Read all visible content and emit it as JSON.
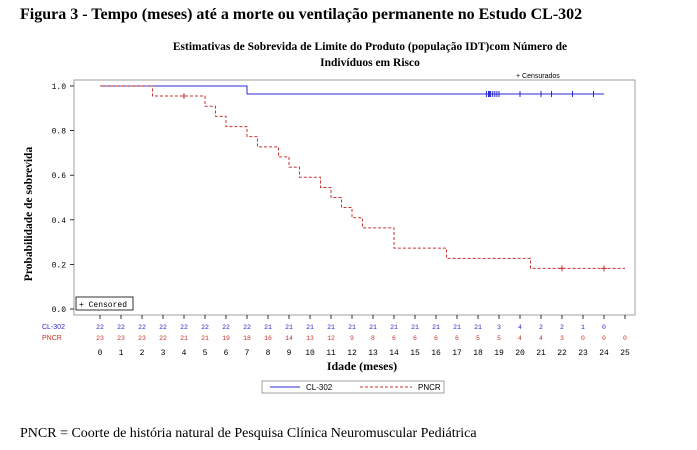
{
  "figure": {
    "title": "Figura 3 - Tempo (meses) até a morte ou ventilação permanente no Estudo CL-302",
    "footnote": "PNCR = Coorte de história natural de Pesquisa Clínica Neuromuscular Pediátrica"
  },
  "colors": {
    "cl302": "#2a2ad0",
    "pncr": "#c83232",
    "axis": "#000000",
    "plot_border": "#888888"
  },
  "chart_data": {
    "type": "line",
    "subtype": "kaplan-meier step survival curve",
    "title_line1": "Estimativas de Sobrevida de Limite do Produto (população IDT)com Número de",
    "title_line2": "Indivíduos em Risco",
    "xlabel": "Idade (meses)",
    "ylabel": "Probabilidade de sobrevida",
    "xlim": [
      0,
      25
    ],
    "ylim": [
      0,
      1
    ],
    "x_ticks": [
      0,
      1,
      2,
      3,
      4,
      5,
      6,
      7,
      8,
      9,
      10,
      11,
      12,
      13,
      14,
      15,
      16,
      17,
      18,
      19,
      20,
      21,
      22,
      23,
      24,
      25
    ],
    "y_ticks": [
      "0.0",
      "0.2",
      "0.4",
      "0.6",
      "0.8",
      "1.0"
    ],
    "y_tick_values": [
      0,
      0.2,
      0.4,
      0.6,
      0.8,
      1.0
    ],
    "censor_legend_top": "+ Censurados",
    "censor_legend_box": "+ Censored",
    "series": [
      {
        "name": "CL-302",
        "key": "cl302",
        "steps": [
          [
            0,
            1.0
          ],
          [
            7,
            0.964
          ]
        ],
        "end_x": 24,
        "censored": [
          [
            18.4,
            0.964
          ],
          [
            18.5,
            0.964
          ],
          [
            18.55,
            0.964
          ],
          [
            18.6,
            0.964
          ],
          [
            18.7,
            0.964
          ],
          [
            18.8,
            0.964
          ],
          [
            18.9,
            0.964
          ],
          [
            19.0,
            0.964
          ],
          [
            20.0,
            0.964
          ],
          [
            21.0,
            0.964
          ],
          [
            21.5,
            0.964
          ],
          [
            22.5,
            0.964
          ],
          [
            23.5,
            0.964
          ]
        ],
        "at_risk": [
          "22",
          "22",
          "22",
          "22",
          "22",
          "22",
          "22",
          "22",
          "21",
          "21",
          "21",
          "21",
          "21",
          "21",
          "21",
          "21",
          "21",
          "21",
          "21",
          "3",
          "4",
          "2",
          "2",
          "1",
          "0"
        ]
      },
      {
        "name": "PNCR",
        "key": "pncr",
        "steps": [
          [
            0,
            1.0
          ],
          [
            2.5,
            0.955
          ],
          [
            5,
            0.909
          ],
          [
            5.5,
            0.864
          ],
          [
            6,
            0.818
          ],
          [
            7,
            0.773
          ],
          [
            7.5,
            0.727
          ],
          [
            8.5,
            0.682
          ],
          [
            9,
            0.636
          ],
          [
            9.5,
            0.591
          ],
          [
            10.5,
            0.545
          ],
          [
            11,
            0.5
          ],
          [
            11.5,
            0.455
          ],
          [
            12,
            0.409
          ],
          [
            12.5,
            0.364
          ],
          [
            14,
            0.273
          ],
          [
            16.5,
            0.227
          ],
          [
            20.5,
            0.182
          ]
        ],
        "end_x": 25,
        "censored": [
          [
            4,
            0.955
          ],
          [
            22,
            0.182
          ],
          [
            24,
            0.182
          ]
        ],
        "at_risk": [
          "23",
          "23",
          "23",
          "22",
          "21",
          "21",
          "19",
          "18",
          "16",
          "14",
          "13",
          "12",
          "9",
          "8",
          "6",
          "6",
          "6",
          "6",
          "5",
          "5",
          "4",
          "4",
          "3",
          "0",
          "0",
          "0"
        ]
      }
    ],
    "legend": {
      "placement": "bottom",
      "entries": [
        "CL-302",
        "PNCR"
      ]
    },
    "grid": false
  }
}
